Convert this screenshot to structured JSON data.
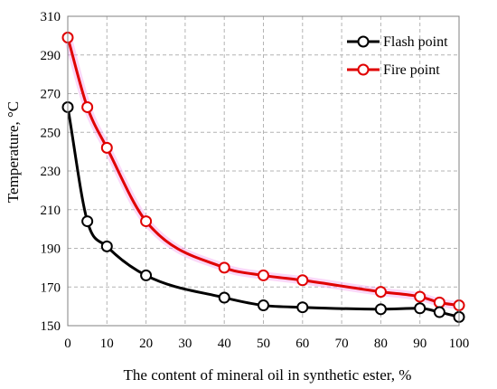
{
  "chart_data": {
    "type": "line",
    "title": "",
    "xlabel": "The content of mineral oil in synthetic ester, %",
    "ylabel": "Temperature, °C",
    "xlim": [
      0,
      100
    ],
    "ylim": [
      150,
      310
    ],
    "xticks": [
      0,
      10,
      20,
      30,
      40,
      50,
      60,
      70,
      80,
      90,
      100
    ],
    "yticks": [
      150,
      170,
      190,
      210,
      230,
      250,
      270,
      290,
      310
    ],
    "grid": true,
    "legend_position": "top-right",
    "x": [
      0,
      5,
      10,
      20,
      40,
      50,
      60,
      80,
      90,
      95,
      100
    ],
    "series": [
      {
        "name": "Flash point",
        "color": "#000000",
        "values": [
          263,
          204,
          191,
          176,
          164.5,
          160.5,
          159.5,
          158.5,
          159,
          157,
          154.5
        ]
      },
      {
        "name": "Fire point",
        "color": "#e00000",
        "values": [
          299,
          263,
          242,
          204,
          180,
          176,
          173.5,
          167.5,
          165,
          162,
          160.5
        ]
      }
    ]
  }
}
